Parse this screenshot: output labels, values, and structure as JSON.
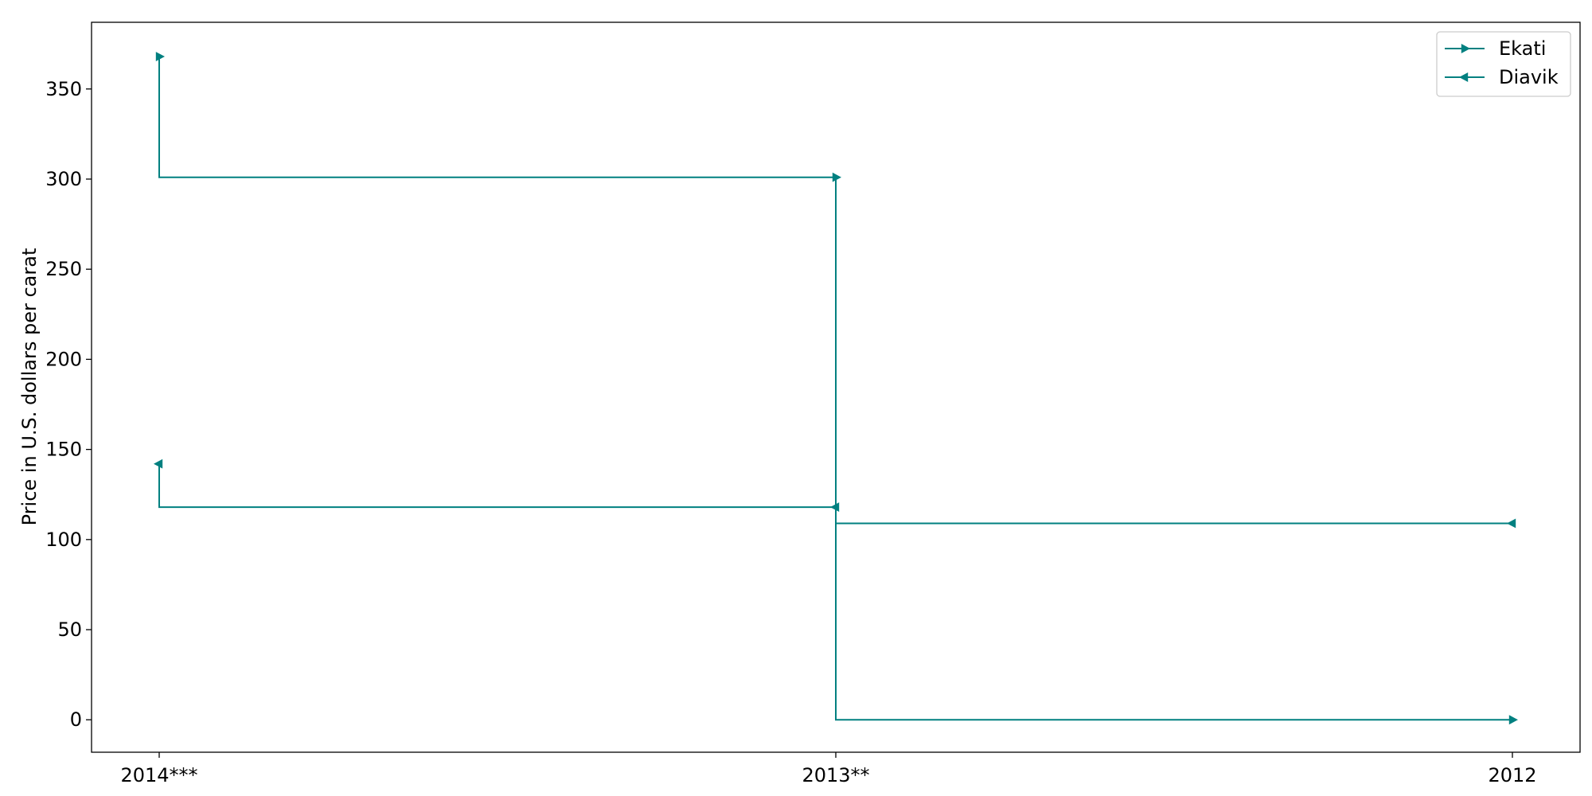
{
  "chart_data": {
    "type": "line",
    "step": "post",
    "categories": [
      "2014***",
      "2013**",
      "2012"
    ],
    "ylabel": "Price in U.S. dollars per carat",
    "xlabel": "",
    "ylim": [
      -18,
      387
    ],
    "yticks": [
      0,
      50,
      100,
      150,
      200,
      250,
      300,
      350
    ],
    "grid": false,
    "legend_position": "top-right",
    "series": [
      {
        "name": "Ekati",
        "marker": "triangle-right",
        "color": "#008080",
        "values": [
          368,
          301,
          0
        ]
      },
      {
        "name": "Diavik",
        "marker": "triangle-left",
        "color": "#008080",
        "values": [
          142,
          118,
          109
        ]
      }
    ]
  }
}
